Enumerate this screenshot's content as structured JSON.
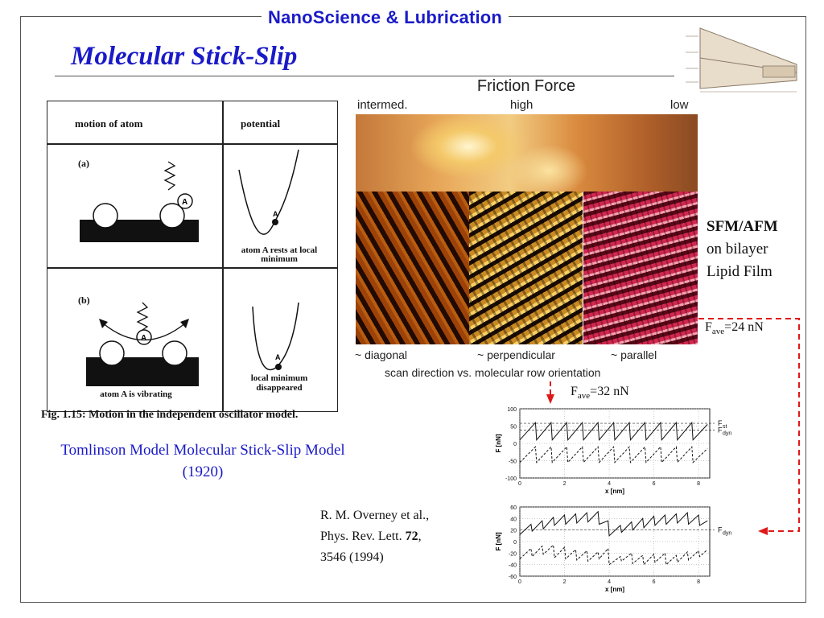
{
  "header": {
    "title": "NanoScience & Lubrication"
  },
  "slide": {
    "title": "Molecular Stick-Slip"
  },
  "logo_icon": "nanoscience-timeline-logo",
  "left_figure": {
    "col1_header": "motion of atom",
    "col2_header": "potential",
    "label_a": "(a)",
    "label_b": "(b)",
    "atom_label": "A",
    "potential_a": "atom A rests at local minimum",
    "potential_b": "local minimum disappeared",
    "atom_vibrating": "atom A is vibrating",
    "caption": "Fig. 1.15: Motion in the independent oscillator model."
  },
  "tomlinson_caption": "Tomlinson Model Molecular Stick-Slip Model (1920)",
  "afm": {
    "title": "Friction Force",
    "top_labels": [
      "intermed.",
      "high",
      "low"
    ],
    "bottom_labels": [
      "~ diagonal",
      "~ perpendicular",
      "~ parallel"
    ],
    "scan_caption": "scan direction vs. molecular row orientation"
  },
  "sfm": {
    "line1": "SFM/AFM",
    "line2": "on bilayer",
    "line3": "Lipid Film"
  },
  "fave_top": {
    "prefix": "F",
    "sub": "ave",
    "value": "=24 nN"
  },
  "fave_mid": {
    "prefix": "F",
    "sub": "ave",
    "value": "=32 nN"
  },
  "reference": {
    "line1": "R. M. Overney et al.,",
    "line2_prefix": "Phys. Rev. Lett. ",
    "line2_bold": "72",
    "line2_suffix": ",",
    "line3": "3546 (1994)"
  },
  "colors": {
    "title_blue": "#1a1ac8",
    "arrow_red": "#e01818"
  },
  "chart_data": [
    {
      "type": "line",
      "xlabel": "x  [nm]",
      "ylabel": "F [nN]",
      "ylim": [
        -100,
        100
      ],
      "xlim": [
        0,
        8.5
      ],
      "x_ticks": [
        "0",
        "2",
        "4",
        "6",
        "8"
      ],
      "y_ticks": [
        "100",
        "50",
        "0",
        "-50",
        "-100"
      ],
      "annotations": [
        "F",
        "st",
        "F",
        "dyn"
      ],
      "series": [
        {
          "x": [
            0,
            0.7,
            0.75,
            1.4,
            1.45,
            2.1,
            2.15,
            2.8,
            2.85,
            3.5,
            3.55,
            4.2,
            4.25,
            4.9,
            4.95,
            5.6,
            5.65,
            6.3,
            6.35,
            7.0,
            7.05,
            7.7,
            7.75,
            8.4
          ],
          "values": [
            10,
            60,
            10,
            60,
            10,
            60,
            10,
            60,
            10,
            60,
            10,
            60,
            10,
            60,
            10,
            60,
            10,
            60,
            10,
            60,
            10,
            60,
            10,
            55
          ]
        },
        {
          "x": [
            0,
            0.7,
            0.75,
            1.4,
            1.45,
            2.1,
            2.15,
            2.8,
            2.85,
            3.5,
            3.55,
            4.2,
            4.25,
            4.9,
            4.95,
            5.6,
            5.65,
            6.3,
            6.35,
            7.0,
            7.05,
            7.7,
            7.75,
            8.4
          ],
          "values": [
            -55,
            -10,
            -55,
            -10,
            -55,
            -10,
            -55,
            -10,
            -55,
            -10,
            -55,
            -10,
            -55,
            -10,
            -55,
            -10,
            -55,
            -10,
            -55,
            -10,
            -55,
            -10,
            -55,
            -15
          ]
        }
      ]
    },
    {
      "type": "line",
      "xlabel": "x  [nm]",
      "ylabel": "F [nN]",
      "ylim": [
        -60,
        60
      ],
      "xlim": [
        0,
        8.5
      ],
      "x_ticks": [
        "0",
        "2",
        "4",
        "6",
        "8"
      ],
      "y_ticks": [
        "60",
        "40",
        "20",
        "0",
        "-20",
        "-40",
        "-60"
      ],
      "annotations": [
        "F",
        "dyn"
      ],
      "series": [
        {
          "x": [
            0,
            0.5,
            0.55,
            1.0,
            1.05,
            1.5,
            1.55,
            2.0,
            2.05,
            2.5,
            2.55,
            3.0,
            3.05,
            3.5,
            3.55,
            3.95,
            4.0,
            4.5,
            4.55,
            5.0,
            5.05,
            5.5,
            5.55,
            6.0,
            6.05,
            6.5,
            6.55,
            7.0,
            7.05,
            7.5,
            7.55,
            8.0,
            8.05,
            8.4
          ],
          "values": [
            12,
            30,
            18,
            36,
            22,
            42,
            28,
            46,
            30,
            48,
            32,
            50,
            34,
            52,
            30,
            36,
            10,
            28,
            16,
            34,
            20,
            40,
            24,
            44,
            28,
            46,
            30,
            48,
            32,
            50,
            30,
            46,
            28,
            36
          ]
        },
        {
          "x": [
            0,
            0.5,
            0.55,
            1.0,
            1.05,
            1.5,
            1.55,
            2.0,
            2.05,
            2.5,
            2.55,
            3.0,
            3.05,
            3.5,
            3.55,
            3.95,
            4.0,
            4.5,
            4.55,
            5.0,
            5.05,
            5.5,
            5.55,
            6.0,
            6.05,
            6.5,
            6.55,
            7.0,
            7.05,
            7.5,
            7.55,
            8.0,
            8.05,
            8.4
          ],
          "values": [
            -30,
            -12,
            -26,
            -8,
            -22,
            -6,
            -28,
            -10,
            -30,
            -14,
            -32,
            -16,
            -34,
            -18,
            -30,
            -12,
            -40,
            -26,
            -34,
            -20,
            -38,
            -24,
            -40,
            -22,
            -36,
            -20,
            -40,
            -24,
            -36,
            -18,
            -32,
            -16,
            -26,
            -14
          ]
        }
      ]
    }
  ]
}
